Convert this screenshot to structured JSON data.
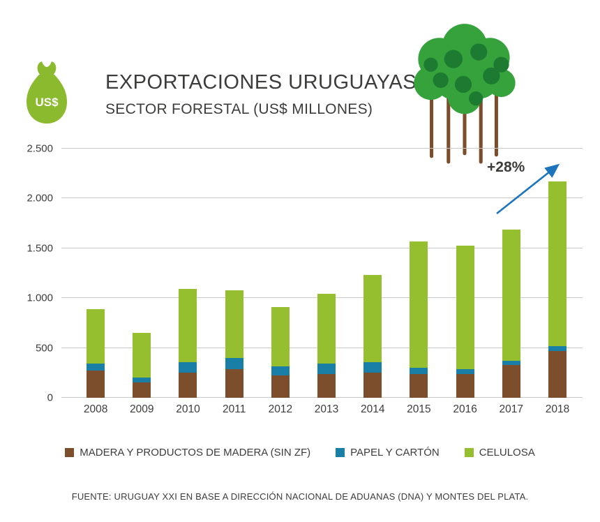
{
  "header": {
    "title_line1": "EXPORTACIONES URUGUAYAS",
    "title_line2": "SECTOR FORESTAL (US$ MILLONES)",
    "money_bag_label": "US$"
  },
  "annotation": {
    "label": "+28%"
  },
  "colors": {
    "madera": "#7C4E2B",
    "papel": "#197FA6",
    "celulosa": "#95BF2F",
    "bag_green": "#8CBA2E",
    "tree_green": "#35A23B",
    "tree_green_dark": "#1C7A31",
    "trunk_brown": "#7C4D2A",
    "arrow_blue": "#1C75BC",
    "text_gray": "#3C3C3B",
    "grid_gray": "#C8C8C7"
  },
  "chart_data": {
    "type": "bar",
    "stacked": true,
    "title": "EXPORTACIONES URUGUAYAS SECTOR FORESTAL (US$ MILLONES)",
    "xlabel": "",
    "ylabel": "",
    "ylim": [
      0,
      2500
    ],
    "grid": true,
    "legend_position": "bottom",
    "categories": [
      "2008",
      "2009",
      "2010",
      "2011",
      "2012",
      "2013",
      "2014",
      "2015",
      "2016",
      "2017",
      "2018"
    ],
    "yticks": [
      "0",
      "500",
      "1.000",
      "1.500",
      "2.000",
      "2.500"
    ],
    "ytick_values": [
      0,
      500,
      1000,
      1500,
      2000,
      2500
    ],
    "series": [
      {
        "name": "MADERA Y PRODUCTOS DE MADERA (SIN ZF)",
        "color": "#7C4E2B",
        "values": [
          270,
          155,
          250,
          290,
          225,
          240,
          250,
          235,
          235,
          330,
          470
        ]
      },
      {
        "name": "PAPEL Y CARTÓN",
        "color": "#197FA6",
        "values": [
          75,
          50,
          105,
          110,
          90,
          100,
          105,
          65,
          50,
          40,
          45
        ]
      },
      {
        "name": "CELULOSA",
        "color": "#95BF2F",
        "values": [
          545,
          445,
          735,
          680,
          595,
          705,
          875,
          1270,
          1245,
          1320,
          1655
        ]
      }
    ],
    "annotation": {
      "text": "+28%",
      "refers_to": "growth 2017 to 2018"
    }
  },
  "footer": {
    "source": "FUENTE: URUGUAY XXI EN BASE A DIRECCIÓN NACIONAL DE ADUANAS (DNA) Y MONTES DEL PLATA."
  }
}
